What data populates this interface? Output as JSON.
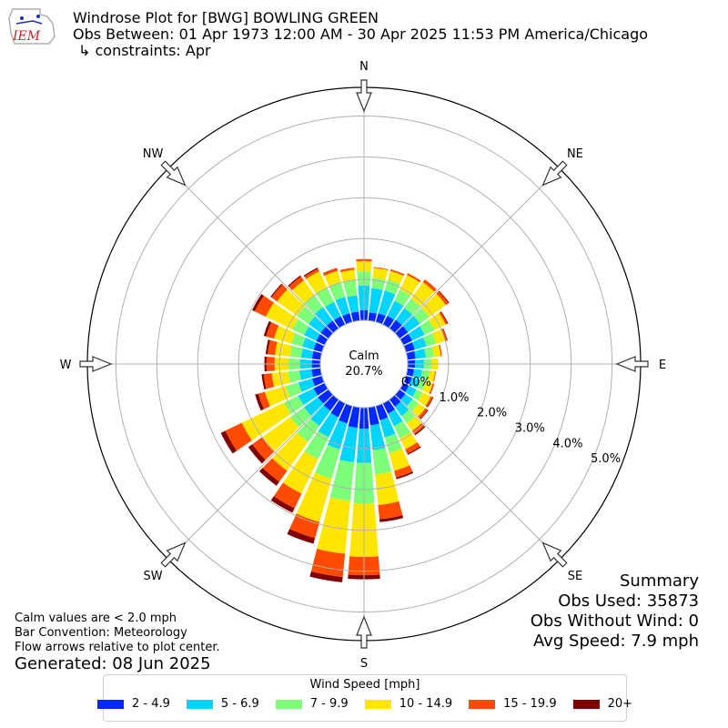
{
  "header": {
    "title": "Windrose Plot for [BWG] BOWLING GREEN",
    "obs_between": "Obs Between: 01 Apr 1973 12:00 AM - 30 Apr 2025 11:53 PM America/Chicago",
    "constraints": "↳ constraints: Apr",
    "logo_text": "IEM"
  },
  "notes": {
    "line1": "Calm values are < 2.0 mph",
    "line2": "Bar Convention: Meteorology",
    "line3": "Flow arrows relative to plot center.",
    "generated": "Generated: 08 Jun 2025"
  },
  "summary": {
    "title": "Summary",
    "obs_used": "Obs Used: 35873",
    "obs_without_wind": "Obs Without Wind: 0",
    "avg_speed": "Avg Speed: 7.9 mph"
  },
  "chart_data": {
    "type": "windrose",
    "calm": {
      "label": "Calm",
      "value": "20.7%"
    },
    "directions": [
      "N",
      "NE",
      "E",
      "SE",
      "S",
      "SW",
      "W",
      "NW"
    ],
    "radial_ticks": [
      "0.0%",
      "1.0%",
      "2.0%",
      "3.0%",
      "4.0%",
      "5.0%"
    ],
    "radial_max": 5.7,
    "legend_title": "Wind Speed [mph]",
    "bins": [
      {
        "label": "2 - 4.9",
        "color": "#0028ff"
      },
      {
        "label": "5 - 6.9",
        "color": "#00d4ff"
      },
      {
        "label": "7 - 9.9",
        "color": "#7dff7a"
      },
      {
        "label": "10 - 14.9",
        "color": "#ffe600"
      },
      {
        "label": "15 - 19.9",
        "color": "#ff4a00"
      },
      {
        "label": "20+",
        "color": "#800000"
      }
    ],
    "sectors": [
      {
        "dir": 0,
        "cumulative": [
          0.25,
          0.85,
          1.2,
          1.45,
          1.5,
          1.5
        ]
      },
      {
        "dir": 10,
        "cumulative": [
          0.2,
          0.8,
          1.05,
          1.3,
          1.32,
          1.32
        ]
      },
      {
        "dir": 20,
        "cumulative": [
          0.22,
          0.8,
          1.08,
          1.3,
          1.34,
          1.34
        ]
      },
      {
        "dir": 30,
        "cumulative": [
          0.24,
          0.65,
          0.95,
          1.35,
          1.4,
          1.4
        ]
      },
      {
        "dir": 40,
        "cumulative": [
          0.26,
          0.62,
          0.9,
          1.4,
          1.48,
          1.48
        ]
      },
      {
        "dir": 50,
        "cumulative": [
          0.26,
          0.62,
          0.9,
          1.4,
          1.48,
          1.5
        ]
      },
      {
        "dir": 60,
        "cumulative": [
          0.24,
          0.58,
          0.85,
          1.15,
          1.2,
          1.22
        ]
      },
      {
        "dir": 70,
        "cumulative": [
          0.22,
          0.52,
          0.76,
          1.0,
          1.05,
          1.06
        ]
      },
      {
        "dir": 80,
        "cumulative": [
          0.2,
          0.45,
          0.65,
          0.82,
          0.85,
          0.85
        ]
      },
      {
        "dir": 90,
        "cumulative": [
          0.18,
          0.4,
          0.58,
          0.75,
          0.75,
          0.75
        ]
      },
      {
        "dir": 100,
        "cumulative": [
          0.16,
          0.36,
          0.54,
          0.68,
          0.7,
          0.7
        ]
      },
      {
        "dir": 110,
        "cumulative": [
          0.15,
          0.35,
          0.5,
          0.68,
          0.72,
          0.72
        ]
      },
      {
        "dir": 120,
        "cumulative": [
          0.15,
          0.36,
          0.52,
          0.75,
          0.8,
          0.82
        ]
      },
      {
        "dir": 130,
        "cumulative": [
          0.18,
          0.4,
          0.58,
          0.78,
          0.85,
          0.87
        ]
      },
      {
        "dir": 140,
        "cumulative": [
          0.22,
          0.5,
          0.72,
          0.95,
          1.05,
          1.08
        ]
      },
      {
        "dir": 150,
        "cumulative": [
          0.28,
          0.62,
          0.95,
          1.25,
          1.37,
          1.4
        ]
      },
      {
        "dir": 160,
        "cumulative": [
          0.36,
          0.8,
          1.2,
          1.65,
          1.82,
          1.86
        ]
      },
      {
        "dir": 170,
        "cumulative": [
          0.44,
          1.05,
          1.65,
          2.4,
          2.75,
          2.82
        ]
      },
      {
        "dir": 180,
        "cumulative": [
          0.52,
          1.35,
          2.35,
          3.65,
          4.1,
          4.2
        ]
      },
      {
        "dir": 190,
        "cumulative": [
          0.5,
          1.35,
          2.3,
          3.6,
          4.17,
          4.3
        ]
      },
      {
        "dir": 200,
        "cumulative": [
          0.44,
          1.1,
          1.85,
          2.95,
          3.36,
          3.5
        ]
      },
      {
        "dir": 210,
        "cumulative": [
          0.38,
          0.92,
          1.52,
          2.45,
          2.85,
          2.97
        ]
      },
      {
        "dir": 220,
        "cumulative": [
          0.34,
          0.8,
          1.28,
          2.15,
          2.48,
          2.6
        ]
      },
      {
        "dir": 230,
        "cumulative": [
          0.32,
          0.74,
          1.15,
          2.0,
          2.3,
          2.42
        ]
      },
      {
        "dir": 240,
        "cumulative": [
          0.3,
          0.72,
          1.1,
          2.25,
          2.7,
          2.82
        ]
      },
      {
        "dir": 250,
        "cumulative": [
          0.25,
          0.6,
          0.92,
          1.45,
          1.62,
          1.7
        ]
      },
      {
        "dir": 260,
        "cumulative": [
          0.22,
          0.52,
          0.8,
          1.2,
          1.4,
          1.45
        ]
      },
      {
        "dir": 270,
        "cumulative": [
          0.21,
          0.5,
          0.78,
          1.12,
          1.32,
          1.37
        ]
      },
      {
        "dir": 280,
        "cumulative": [
          0.21,
          0.48,
          0.75,
          1.12,
          1.3,
          1.35
        ]
      },
      {
        "dir": 290,
        "cumulative": [
          0.21,
          0.5,
          0.78,
          1.22,
          1.42,
          1.48
        ]
      },
      {
        "dir": 300,
        "cumulative": [
          0.23,
          0.56,
          0.88,
          1.6,
          1.9,
          1.97
        ]
      },
      {
        "dir": 310,
        "cumulative": [
          0.24,
          0.6,
          0.95,
          1.55,
          1.72,
          1.75
        ]
      },
      {
        "dir": 320,
        "cumulative": [
          0.24,
          0.65,
          1.0,
          1.45,
          1.57,
          1.6
        ]
      },
      {
        "dir": 330,
        "cumulative": [
          0.23,
          0.62,
          1.02,
          1.45,
          1.52,
          1.55
        ]
      },
      {
        "dir": 340,
        "cumulative": [
          0.22,
          0.64,
          1.02,
          1.3,
          1.36,
          1.37
        ]
      },
      {
        "dir": 350,
        "cumulative": [
          0.22,
          0.62,
          1.0,
          1.25,
          1.3,
          1.3
        ]
      }
    ]
  }
}
